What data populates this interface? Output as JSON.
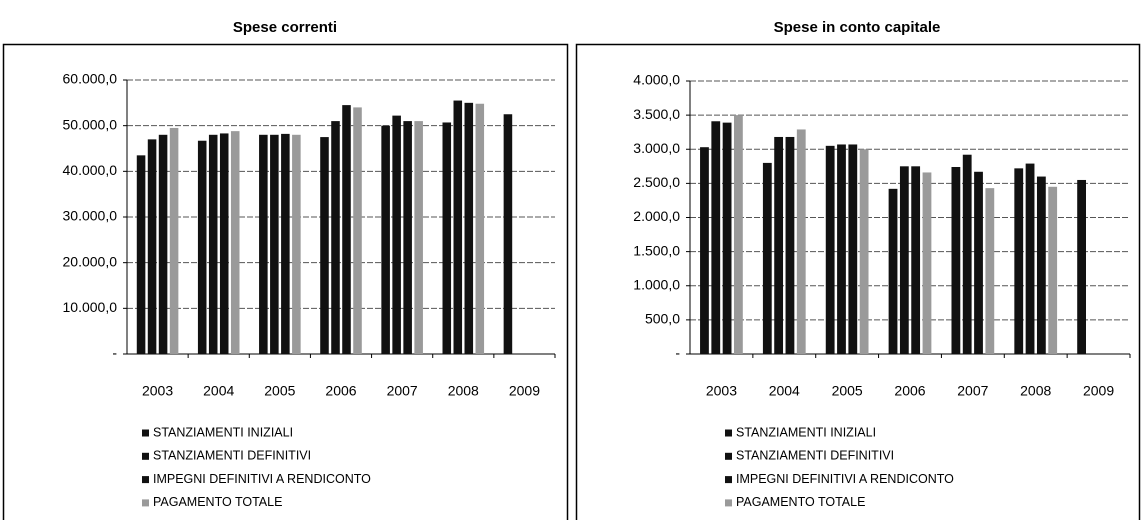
{
  "chart_data": [
    {
      "type": "bar",
      "title": "Spese correnti",
      "categories": [
        "2003",
        "2004",
        "2005",
        "2006",
        "2007",
        "2008",
        "2009"
      ],
      "series": [
        {
          "name": "STANZIAMENTI INIZIALI",
          "color": "#111111",
          "values": [
            43500,
            46700,
            48000,
            47500,
            50000,
            50700,
            52500
          ]
        },
        {
          "name": "STANZIAMENTI DEFINITIVI",
          "color": "#111111",
          "values": [
            47000,
            48000,
            48000,
            51000,
            52200,
            55500,
            null
          ]
        },
        {
          "name": "IMPEGNI DEFINITIVI A RENDICONTO",
          "color": "#111111",
          "values": [
            48000,
            48300,
            48200,
            54500,
            51000,
            55000,
            null
          ]
        },
        {
          "name": "PAGAMENTO TOTALE",
          "color": "#9a9a9a",
          "values": [
            49500,
            48800,
            48000,
            54000,
            51000,
            54800,
            null
          ]
        }
      ],
      "ylim": [
        0,
        60000
      ],
      "yticks": [
        {
          "value": 0,
          "label": "-"
        },
        {
          "value": 10000,
          "label": "10.000,0"
        },
        {
          "value": 20000,
          "label": "20.000,0"
        },
        {
          "value": 30000,
          "label": "30.000,0"
        },
        {
          "value": 40000,
          "label": "40.000,0"
        },
        {
          "value": 50000,
          "label": "50.000,0"
        },
        {
          "value": 60000,
          "label": "60.000,0"
        }
      ],
      "grid": true,
      "legend": "bottom"
    },
    {
      "type": "bar",
      "title": "Spese in conto capitale",
      "categories": [
        "2003",
        "2004",
        "2005",
        "2006",
        "2007",
        "2008",
        "2009"
      ],
      "series": [
        {
          "name": "STANZIAMENTI INIZIALI",
          "color": "#111111",
          "values": [
            3030,
            2800,
            3050,
            2420,
            2740,
            2720,
            2550
          ]
        },
        {
          "name": "STANZIAMENTI DEFINITIVI",
          "color": "#111111",
          "values": [
            3410,
            3180,
            3070,
            2750,
            2920,
            2790,
            null
          ]
        },
        {
          "name": "IMPEGNI DEFINITIVI A RENDICONTO",
          "color": "#111111",
          "values": [
            3390,
            3180,
            3070,
            2750,
            2670,
            2600,
            null
          ]
        },
        {
          "name": "PAGAMENTO TOTALE",
          "color": "#9a9a9a",
          "values": [
            3500,
            3290,
            3000,
            2660,
            2430,
            2450,
            null
          ]
        }
      ],
      "ylim": [
        0,
        4000
      ],
      "yticks": [
        {
          "value": 0,
          "label": "-"
        },
        {
          "value": 500,
          "label": "500,0"
        },
        {
          "value": 1000,
          "label": "1.000,0"
        },
        {
          "value": 1500,
          "label": "1.500,0"
        },
        {
          "value": 2000,
          "label": "2.000,0"
        },
        {
          "value": 2500,
          "label": "2.500,0"
        },
        {
          "value": 3000,
          "label": "3.000,0"
        },
        {
          "value": 3500,
          "label": "3.500,0"
        },
        {
          "value": 4000,
          "label": "4.000,0"
        }
      ],
      "grid": true,
      "legend": "bottom"
    }
  ]
}
